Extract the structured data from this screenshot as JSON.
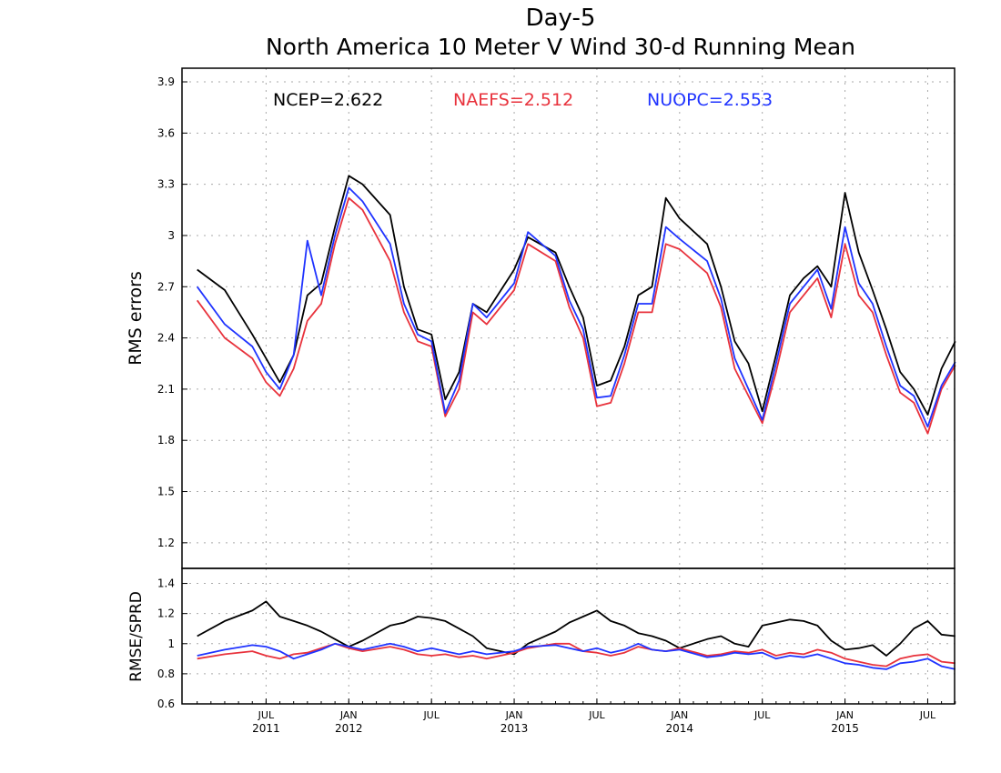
{
  "colors": {
    "ncep": "#000000",
    "naefs": "#e8323c",
    "nuopc": "#1f33ff",
    "grid": "#aaaaaa"
  },
  "chart_data": [
    {
      "type": "line",
      "title": "Day-5",
      "subtitle": "North America 10 Meter V Wind 30-d Running Mean",
      "ylabel": "RMS errors",
      "ylim": [
        1.05,
        3.98
      ],
      "yticks": [
        1.2,
        1.5,
        1.8,
        2.1,
        2.4,
        2.7,
        3,
        3.3,
        3.6,
        3.9
      ],
      "ytick_labels": [
        "1.2",
        "1.5",
        "1.8",
        "2.1",
        "2.4",
        "2.7",
        "3",
        "3.3",
        "3.6",
        "3.9"
      ],
      "grid": true,
      "legend": [
        {
          "text": "NCEP=2.622",
          "color": "ncep"
        },
        {
          "text": "NAEFS=2.512",
          "color": "naefs"
        },
        {
          "text": "NUOPC=2.553",
          "color": "nuopc"
        }
      ],
      "x": [
        "2011-02",
        "2011-04",
        "2011-06",
        "2011-07",
        "2011-08",
        "2011-09",
        "2011-10",
        "2011-11",
        "2011-12",
        "2012-01",
        "2012-02",
        "2012-04",
        "2012-05",
        "2012-06",
        "2012-07",
        "2012-08",
        "2012-09",
        "2012-10",
        "2012-11",
        "2013-01",
        "2013-02",
        "2013-04",
        "2013-05",
        "2013-06",
        "2013-07",
        "2013-08",
        "2013-09",
        "2013-10",
        "2013-11",
        "2013-12",
        "2014-01",
        "2014-03",
        "2014-04",
        "2014-05",
        "2014-06",
        "2014-07",
        "2014-08",
        "2014-09",
        "2014-10",
        "2014-11",
        "2014-12",
        "2015-01",
        "2015-02",
        "2015-03",
        "2015-04",
        "2015-05",
        "2015-06",
        "2015-07",
        "2015-08",
        "2015-09"
      ],
      "series": [
        {
          "name": "NCEP",
          "color": "ncep",
          "values": [
            2.8,
            2.68,
            2.42,
            2.28,
            2.14,
            2.3,
            2.65,
            2.72,
            3.05,
            3.35,
            3.3,
            3.12,
            2.7,
            2.45,
            2.42,
            2.04,
            2.2,
            2.6,
            2.55,
            2.8,
            2.99,
            2.9,
            2.7,
            2.52,
            2.12,
            2.15,
            2.35,
            2.65,
            2.7,
            3.22,
            3.1,
            2.95,
            2.7,
            2.38,
            2.25,
            1.97,
            2.3,
            2.65,
            2.75,
            2.82,
            2.7,
            3.25,
            2.9,
            2.68,
            2.45,
            2.2,
            2.1,
            1.95,
            2.22,
            2.38
          ]
        },
        {
          "name": "NAEFS",
          "color": "naefs",
          "values": [
            2.62,
            2.4,
            2.28,
            2.14,
            2.06,
            2.22,
            2.5,
            2.6,
            2.95,
            3.22,
            3.15,
            2.85,
            2.55,
            2.38,
            2.35,
            1.94,
            2.1,
            2.55,
            2.48,
            2.68,
            2.95,
            2.85,
            2.58,
            2.4,
            2.0,
            2.02,
            2.25,
            2.55,
            2.55,
            2.95,
            2.92,
            2.78,
            2.58,
            2.22,
            2.06,
            1.9,
            2.2,
            2.55,
            2.65,
            2.75,
            2.52,
            2.95,
            2.65,
            2.55,
            2.3,
            2.08,
            2.02,
            1.84,
            2.1,
            2.24
          ]
        },
        {
          "name": "NUOPC",
          "color": "nuopc",
          "values": [
            2.7,
            2.48,
            2.35,
            2.2,
            2.1,
            2.3,
            2.97,
            2.65,
            3.0,
            3.28,
            3.2,
            2.95,
            2.6,
            2.42,
            2.38,
            1.96,
            2.15,
            2.6,
            2.52,
            2.72,
            3.02,
            2.88,
            2.62,
            2.45,
            2.05,
            2.06,
            2.3,
            2.6,
            2.6,
            3.05,
            2.98,
            2.85,
            2.63,
            2.28,
            2.1,
            1.92,
            2.25,
            2.6,
            2.7,
            2.8,
            2.57,
            3.05,
            2.72,
            2.6,
            2.35,
            2.12,
            2.06,
            1.88,
            2.12,
            2.26
          ]
        }
      ]
    },
    {
      "type": "line",
      "ylabel": "RMSE/SPRD",
      "ylim": [
        0.6,
        1.5
      ],
      "yticks": [
        0.6,
        0.8,
        1,
        1.2,
        1.4
      ],
      "ytick_labels": [
        "0.6",
        "0.8",
        "1",
        "1.2",
        "1.4"
      ],
      "grid": true,
      "x": [
        "2011-02",
        "2011-04",
        "2011-06",
        "2011-07",
        "2011-08",
        "2011-09",
        "2011-10",
        "2011-11",
        "2011-12",
        "2012-01",
        "2012-02",
        "2012-04",
        "2012-05",
        "2012-06",
        "2012-07",
        "2012-08",
        "2012-09",
        "2012-10",
        "2012-11",
        "2013-01",
        "2013-02",
        "2013-04",
        "2013-05",
        "2013-06",
        "2013-07",
        "2013-08",
        "2013-09",
        "2013-10",
        "2013-11",
        "2013-12",
        "2014-01",
        "2014-03",
        "2014-04",
        "2014-05",
        "2014-06",
        "2014-07",
        "2014-08",
        "2014-09",
        "2014-10",
        "2014-11",
        "2014-12",
        "2015-01",
        "2015-02",
        "2015-03",
        "2015-04",
        "2015-05",
        "2015-06",
        "2015-07",
        "2015-08",
        "2015-09"
      ],
      "x_tick_labels": [
        {
          "date": "2011-07",
          "month": "JUL",
          "year": "2011"
        },
        {
          "date": "2012-01",
          "month": "JAN",
          "year": "2012"
        },
        {
          "date": "2012-07",
          "month": "JUL",
          "year": ""
        },
        {
          "date": "2013-01",
          "month": "JAN",
          "year": "2013"
        },
        {
          "date": "2013-07",
          "month": "JUL",
          "year": ""
        },
        {
          "date": "2014-01",
          "month": "JAN",
          "year": "2014"
        },
        {
          "date": "2014-07",
          "month": "JUL",
          "year": ""
        },
        {
          "date": "2015-01",
          "month": "JAN",
          "year": "2015"
        },
        {
          "date": "2015-07",
          "month": "JUL",
          "year": ""
        }
      ],
      "series": [
        {
          "name": "NCEP",
          "color": "ncep",
          "values": [
            1.05,
            1.15,
            1.22,
            1.28,
            1.18,
            1.15,
            1.12,
            1.08,
            1.03,
            0.98,
            1.02,
            1.12,
            1.14,
            1.18,
            1.17,
            1.15,
            1.1,
            1.05,
            0.97,
            0.93,
            1.0,
            1.08,
            1.14,
            1.18,
            1.22,
            1.15,
            1.12,
            1.07,
            1.05,
            1.02,
            0.97,
            1.03,
            1.05,
            1.0,
            0.98,
            1.12,
            1.14,
            1.16,
            1.15,
            1.12,
            1.02,
            0.96,
            0.97,
            0.99,
            0.92,
            1.0,
            1.1,
            1.15,
            1.06,
            1.05
          ]
        },
        {
          "name": "NAEFS",
          "color": "naefs",
          "values": [
            0.9,
            0.93,
            0.95,
            0.92,
            0.9,
            0.93,
            0.94,
            0.97,
            1.0,
            0.97,
            0.95,
            0.98,
            0.96,
            0.93,
            0.92,
            0.93,
            0.91,
            0.92,
            0.9,
            0.94,
            0.97,
            1.0,
            1.0,
            0.95,
            0.94,
            0.92,
            0.94,
            0.98,
            0.96,
            0.95,
            0.97,
            0.92,
            0.93,
            0.95,
            0.94,
            0.96,
            0.92,
            0.94,
            0.93,
            0.96,
            0.94,
            0.9,
            0.88,
            0.86,
            0.85,
            0.9,
            0.92,
            0.93,
            0.88,
            0.87
          ]
        },
        {
          "name": "NUOPC",
          "color": "nuopc",
          "values": [
            0.92,
            0.96,
            0.99,
            0.98,
            0.95,
            0.9,
            0.93,
            0.96,
            1.0,
            0.98,
            0.96,
            1.0,
            0.98,
            0.95,
            0.97,
            0.95,
            0.93,
            0.95,
            0.93,
            0.95,
            0.98,
            0.99,
            0.97,
            0.95,
            0.97,
            0.94,
            0.96,
            1.0,
            0.96,
            0.95,
            0.96,
            0.91,
            0.92,
            0.94,
            0.93,
            0.94,
            0.9,
            0.92,
            0.91,
            0.93,
            0.9,
            0.87,
            0.86,
            0.84,
            0.83,
            0.87,
            0.88,
            0.9,
            0.85,
            0.83
          ]
        }
      ]
    }
  ]
}
